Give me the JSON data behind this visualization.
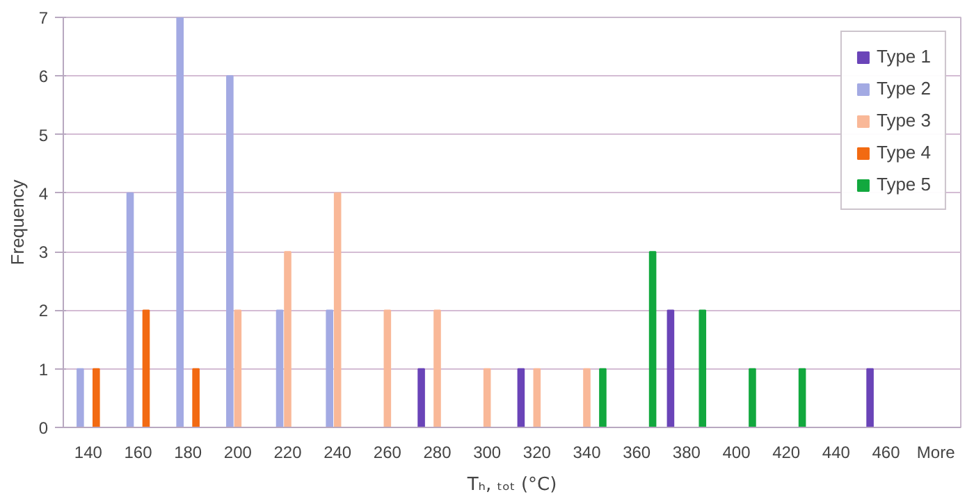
{
  "chart_data": {
    "type": "bar",
    "xlabel": "Tₕ, ₜₒₜ (°C)",
    "ylabel": "Frequency",
    "categories": [
      "140",
      "160",
      "180",
      "200",
      "220",
      "240",
      "260",
      "280",
      "300",
      "320",
      "340",
      "360",
      "380",
      "400",
      "420",
      "440",
      "460",
      "More"
    ],
    "series": [
      {
        "name": "Type 1",
        "color": "#6a44b8",
        "values": [
          0,
          0,
          0,
          0,
          0,
          0,
          0,
          1,
          0,
          1,
          0,
          0,
          2,
          0,
          0,
          0,
          1,
          0
        ]
      },
      {
        "name": "Type 2",
        "color": "#a3aae3",
        "values": [
          1,
          4,
          7,
          6,
          2,
          2,
          0,
          0,
          0,
          0,
          0,
          0,
          0,
          0,
          0,
          0,
          0,
          0
        ]
      },
      {
        "name": "Type 3",
        "color": "#f9b898",
        "values": [
          0,
          0,
          0,
          2,
          3,
          4,
          2,
          2,
          1,
          1,
          1,
          0,
          0,
          0,
          0,
          0,
          0,
          0
        ]
      },
      {
        "name": "Type 4",
        "color": "#f26a12",
        "values": [
          1,
          2,
          1,
          0,
          0,
          0,
          0,
          0,
          0,
          0,
          0,
          0,
          0,
          0,
          0,
          0,
          0,
          0
        ]
      },
      {
        "name": "Type 5",
        "color": "#12a83e",
        "values": [
          0,
          0,
          0,
          0,
          0,
          0,
          0,
          0,
          0,
          0,
          1,
          3,
          2,
          1,
          1,
          0,
          0,
          0
        ]
      }
    ],
    "ylim": [
      0,
      7
    ],
    "yticks": [
      0,
      1,
      2,
      3,
      4,
      5,
      6,
      7
    ],
    "grid": "y",
    "legend": "top right"
  }
}
